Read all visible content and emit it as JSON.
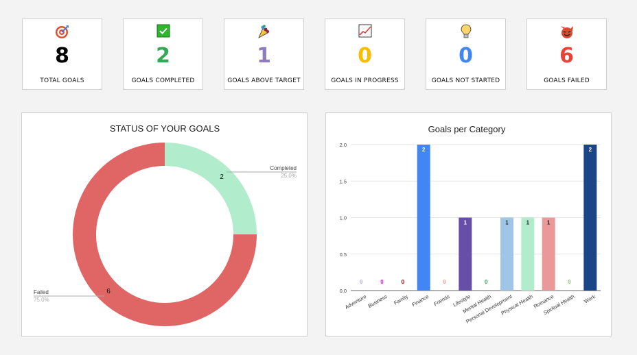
{
  "cards": [
    {
      "icon": "target-icon",
      "value": "8",
      "label": "TOTAL GOALS",
      "color": "#000000"
    },
    {
      "icon": "check-mark-icon",
      "value": "2",
      "label": "GOALS COMPLETED",
      "color": "#34a853"
    },
    {
      "icon": "party-popper-icon",
      "value": "1",
      "label": "GOALS ABOVE TARGET",
      "color": "#8e7cc3"
    },
    {
      "icon": "chart-increasing-icon",
      "value": "0",
      "label": "GOALS IN PROGRESS",
      "color": "#fbbc04"
    },
    {
      "icon": "light-bulb-icon",
      "value": "0",
      "label": "GOALS NOT STARTED",
      "color": "#4285f4"
    },
    {
      "icon": "devil-face-icon",
      "value": "6",
      "label": "GOALS FAILED",
      "color": "#ea4335"
    }
  ],
  "status_chart": {
    "title": "STATUS OF YOUR GOALS",
    "completed": {
      "label": "Completed",
      "value": "2",
      "pct": "25.0%",
      "color": "#b1edcc"
    },
    "failed": {
      "label": "Failed",
      "value": "6",
      "pct": "75.0%",
      "color": "#e06666"
    }
  },
  "category_chart": {
    "title": "Goals per Category",
    "y_ticks": [
      "0.0",
      "0.5",
      "1.0",
      "1.5",
      "2.0"
    ]
  },
  "chart_data": [
    {
      "type": "pie",
      "title": "STATUS OF YOUR GOALS",
      "categories": [
        "Completed",
        "Failed"
      ],
      "values": [
        2,
        6
      ],
      "percentages": [
        "25.0%",
        "75.0%"
      ],
      "colors": [
        "#b1edcc",
        "#e06666"
      ],
      "donut": true
    },
    {
      "type": "bar",
      "title": "Goals per Category",
      "categories": [
        "Adventure",
        "Business",
        "Family",
        "Finance",
        "Friends",
        "Lifestyle",
        "Mental Health",
        "Personal Development",
        "Physical Health",
        "Romance",
        "Spiritual Health",
        "Work"
      ],
      "values": [
        0,
        0,
        0,
        2,
        0,
        1,
        0,
        1,
        1,
        1,
        0,
        2
      ],
      "colors": [
        "#b4a7d6",
        "#ff00ff",
        "#990000",
        "#4285f4",
        "#ea9999",
        "#674ea7",
        "#34a853",
        "#9fc5e8",
        "#b1edcc",
        "#ea9999",
        "#93c47d",
        "#1c4587"
      ],
      "xlabel": "",
      "ylabel": "",
      "ylim": [
        0,
        2
      ],
      "y_ticks": [
        0,
        0.5,
        1.0,
        1.5,
        2.0
      ],
      "grid": true
    }
  ]
}
